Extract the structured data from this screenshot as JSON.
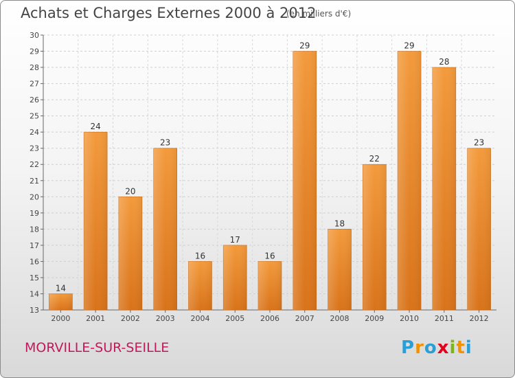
{
  "title": "Achats et Charges Externes 2000 à 2012",
  "unit": "(en milliers d'€)",
  "commune": "MORVILLE-SUR-SEILLE",
  "logo": {
    "text": "Proxiti",
    "letters": [
      "P",
      "r",
      "o",
      "x",
      "i",
      "t",
      "i"
    ],
    "colors": [
      "#2a9fd6",
      "#f39200",
      "#2a9fd6",
      "#e2001a",
      "#7cb518",
      "#f39200",
      "#2a9fd6"
    ]
  },
  "chart_data": {
    "type": "bar",
    "categories": [
      "2000",
      "2001",
      "2002",
      "2003",
      "2004",
      "2005",
      "2006",
      "2007",
      "2008",
      "2009",
      "2010",
      "2011",
      "2012"
    ],
    "values": [
      14,
      24,
      20,
      23,
      16,
      17,
      16,
      29,
      18,
      22,
      29,
      28,
      23
    ],
    "data_labels": [
      "14",
      "24",
      "20",
      "23",
      "16",
      "17",
      "16",
      "29",
      "18",
      "22",
      "29",
      "28",
      "23"
    ],
    "ylim": [
      13,
      30
    ],
    "yticks": [
      "13",
      "14",
      "15",
      "16",
      "17",
      "18",
      "19",
      "20",
      "21",
      "22",
      "23",
      "24",
      "25",
      "26",
      "27",
      "28",
      "29",
      "30"
    ],
    "grid": true,
    "bar_color": "#f39a3c",
    "bar_color_dark": "#d9731a"
  }
}
